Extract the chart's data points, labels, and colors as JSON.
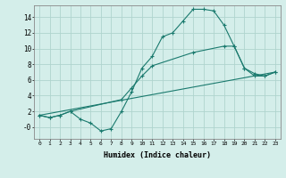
{
  "xlabel": "Humidex (Indice chaleur)",
  "bg_color": "#d4eeea",
  "grid_color": "#afd4ce",
  "line_color": "#1a7a6e",
  "xlim": [
    -0.5,
    23.5
  ],
  "ylim": [
    -1.5,
    15.5
  ],
  "xticks": [
    0,
    1,
    2,
    3,
    4,
    5,
    6,
    7,
    8,
    9,
    10,
    11,
    12,
    13,
    14,
    15,
    16,
    17,
    18,
    19,
    20,
    21,
    22,
    23
  ],
  "yticks": [
    0,
    2,
    4,
    6,
    8,
    10,
    12,
    14
  ],
  "ytick_labels": [
    "-0",
    "2",
    "4",
    "6",
    "8",
    "10",
    "12",
    "14"
  ],
  "line1_x": [
    0,
    1,
    2,
    3,
    4,
    5,
    6,
    7,
    8,
    9,
    10,
    11,
    12,
    13,
    14,
    15,
    16,
    17,
    18,
    19,
    20,
    21,
    22,
    23
  ],
  "line1_y": [
    1.5,
    1.2,
    1.5,
    2.0,
    1.0,
    0.5,
    -0.5,
    -0.2,
    2.0,
    4.5,
    7.5,
    9.0,
    11.5,
    12.0,
    13.5,
    15.0,
    15.0,
    14.8,
    13.0,
    10.3,
    7.5,
    6.5,
    6.5,
    7.0
  ],
  "line2_x": [
    0,
    1,
    2,
    3,
    8,
    9,
    10,
    11,
    15,
    18,
    19,
    20,
    21,
    22,
    23
  ],
  "line2_y": [
    1.5,
    1.2,
    1.5,
    2.0,
    3.5,
    5.0,
    6.5,
    7.8,
    9.5,
    10.3,
    10.3,
    7.5,
    6.8,
    6.5,
    7.0
  ],
  "line3_x": [
    0,
    23
  ],
  "line3_y": [
    1.5,
    7.0
  ]
}
